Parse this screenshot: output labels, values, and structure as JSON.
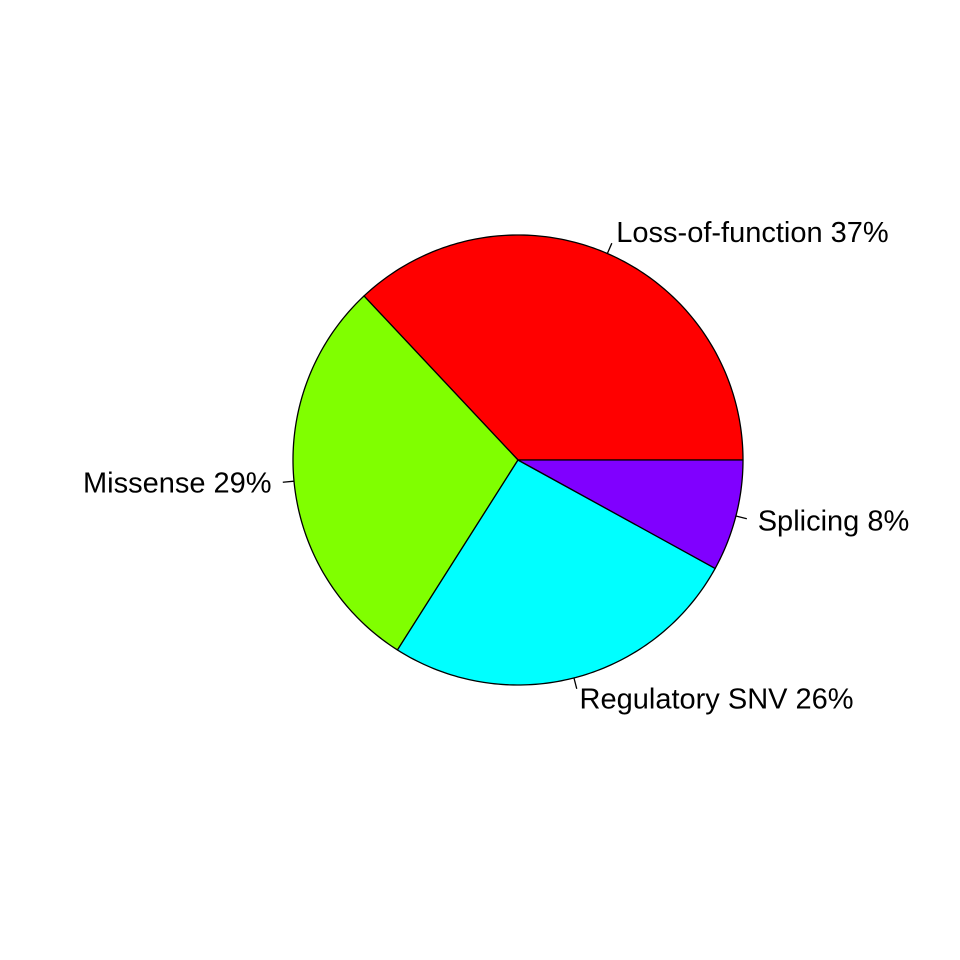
{
  "chart_data": {
    "type": "pie",
    "slices": [
      {
        "label": "Loss-of-function 37%",
        "category": "Loss-of-function",
        "value": 37,
        "color": "#FF0000"
      },
      {
        "label": "Missense 29%",
        "category": "Missense",
        "value": 29,
        "color": "#80FF00"
      },
      {
        "label": "Regulatory SNV 26%",
        "category": "Regulatory SNV",
        "value": 26,
        "color": "#00FFFF"
      },
      {
        "label": "Splicing 8%",
        "category": "Splicing",
        "value": 8,
        "color": "#8000FF"
      }
    ],
    "start_angle_deg": 0,
    "direction": "counterclockwise",
    "legend": "none"
  }
}
